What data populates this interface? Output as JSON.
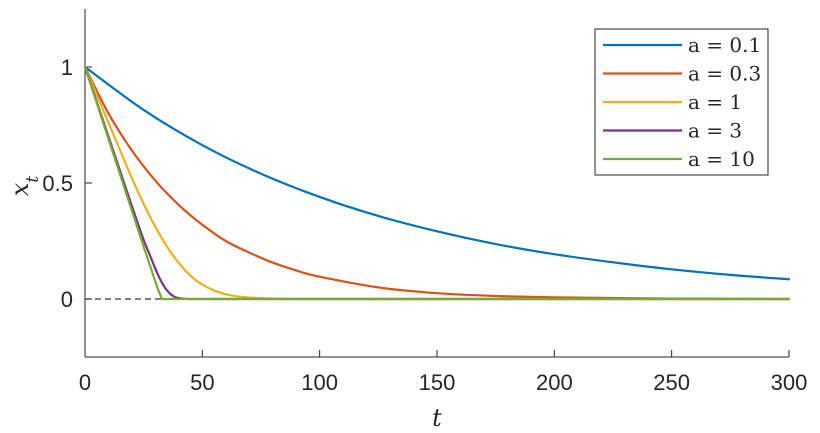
{
  "chart_data": {
    "type": "line",
    "title": "",
    "xlabel": "t",
    "ylabel": "x_t",
    "xlim": [
      0,
      300
    ],
    "ylim": [
      -0.25,
      1.25
    ],
    "x_ticks": [
      0,
      50,
      100,
      150,
      200,
      250,
      300
    ],
    "x_tick_labels": [
      "0",
      "50",
      "100",
      "150",
      "200",
      "250",
      "300"
    ],
    "y_ticks": [
      0,
      0.5,
      1
    ],
    "y_tick_labels": [
      "0",
      "0.5",
      "1"
    ],
    "grid": false,
    "legend_position": "top-right",
    "reference_line": {
      "y": 0,
      "style": "dashed",
      "color": "#000000"
    },
    "series": [
      {
        "name": "a = 0.1",
        "color": "#0072BD",
        "x": [
          0,
          25,
          50,
          75,
          100,
          125,
          150,
          175,
          200,
          225,
          250,
          275,
          300
        ],
        "y": [
          1.0,
          0.815,
          0.663,
          0.54,
          0.44,
          0.358,
          0.292,
          0.237,
          0.193,
          0.158,
          0.128,
          0.104,
          0.085
        ]
      },
      {
        "name": "a = 0.3",
        "color": "#D95319",
        "x": [
          0,
          10,
          20,
          30,
          40,
          50,
          60,
          70,
          80,
          90,
          100,
          125,
          150,
          175,
          200,
          250,
          300
        ],
        "y": [
          1.0,
          0.8,
          0.64,
          0.51,
          0.405,
          0.32,
          0.25,
          0.2,
          0.157,
          0.123,
          0.096,
          0.05,
          0.025,
          0.013,
          0.007,
          0.002,
          0.0
        ]
      },
      {
        "name": "a = 1",
        "color": "#EDB120",
        "x": [
          0,
          5,
          10,
          15,
          20,
          25,
          30,
          35,
          40,
          45,
          50,
          55,
          60,
          65,
          70,
          80,
          90,
          100,
          150,
          300
        ],
        "y": [
          1.0,
          0.88,
          0.76,
          0.64,
          0.52,
          0.41,
          0.31,
          0.225,
          0.155,
          0.1,
          0.062,
          0.037,
          0.021,
          0.011,
          0.006,
          0.002,
          0.0,
          0.0,
          0.0,
          0.0
        ]
      },
      {
        "name": "a = 3",
        "color": "#7E2F8E",
        "x": [
          0,
          5,
          10,
          15,
          20,
          25,
          28,
          30,
          32,
          34,
          36,
          38,
          40,
          44,
          50,
          100,
          300
        ],
        "y": [
          1.0,
          0.85,
          0.7,
          0.55,
          0.4,
          0.255,
          0.18,
          0.13,
          0.085,
          0.05,
          0.025,
          0.01,
          0.004,
          0.0,
          0.0,
          0.0,
          0.0
        ]
      },
      {
        "name": "a = 10",
        "color": "#77AC30",
        "x": [
          0,
          5,
          10,
          15,
          20,
          25,
          28,
          30,
          31,
          32,
          33,
          35,
          40,
          100,
          300
        ],
        "y": [
          1.0,
          0.845,
          0.69,
          0.535,
          0.38,
          0.225,
          0.135,
          0.075,
          0.045,
          0.02,
          0.0,
          0.0,
          0.0,
          0.0,
          0.0
        ]
      }
    ]
  }
}
